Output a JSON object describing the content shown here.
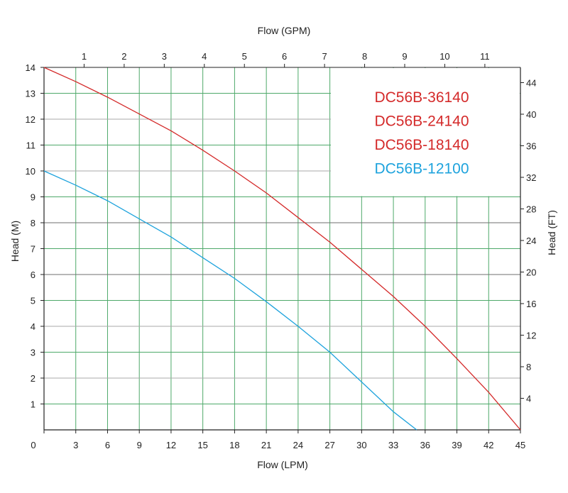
{
  "chart_data": {
    "type": "line",
    "x_bottom": {
      "label": "Flow (LPM)",
      "range": [
        0,
        45
      ],
      "ticks": [
        0,
        3,
        6,
        9,
        12,
        15,
        18,
        21,
        24,
        27,
        30,
        33,
        36,
        39,
        42,
        45
      ]
    },
    "x_top": {
      "label": "Flow (GPM)",
      "ticks": [
        1,
        2,
        3,
        4,
        5,
        6,
        7,
        8,
        9,
        10,
        11
      ]
    },
    "y_left": {
      "label": "Head (M)",
      "range": [
        0,
        14
      ],
      "ticks": [
        1,
        2,
        3,
        4,
        5,
        6,
        7,
        8,
        9,
        10,
        11,
        12,
        13,
        14
      ]
    },
    "y_right": {
      "label": "Head (FT)",
      "ticks": [
        4,
        8,
        12,
        16,
        20,
        24,
        28,
        32,
        36,
        40,
        44
      ]
    },
    "grid": true,
    "legend_position": "top-right",
    "legend": [
      {
        "label": "DC56B-36140",
        "color": "#d42a2a"
      },
      {
        "label": "DC56B-24140",
        "color": "#d42a2a"
      },
      {
        "label": "DC56B-18140",
        "color": "#d42a2a"
      },
      {
        "label": "DC56B-12100",
        "color": "#1ea3dd"
      }
    ],
    "series": [
      {
        "color": "#d42a2a",
        "x": [
          0,
          3,
          6,
          9,
          12,
          15,
          18,
          21,
          24,
          27,
          30,
          33,
          36,
          39,
          42,
          45
        ],
        "y": [
          14,
          13.45,
          12.85,
          12.2,
          11.55,
          10.8,
          10.0,
          9.15,
          8.2,
          7.25,
          6.2,
          5.15,
          4.0,
          2.75,
          1.45,
          0
        ]
      },
      {
        "color": "#1ea3dd",
        "x": [
          0,
          3,
          6,
          9,
          12,
          15,
          18,
          21,
          24,
          27,
          30,
          33,
          35.2
        ],
        "y": [
          10,
          9.45,
          8.85,
          8.15,
          7.45,
          6.65,
          5.85,
          4.95,
          4.0,
          3.0,
          1.85,
          0.7,
          0
        ]
      }
    ]
  }
}
